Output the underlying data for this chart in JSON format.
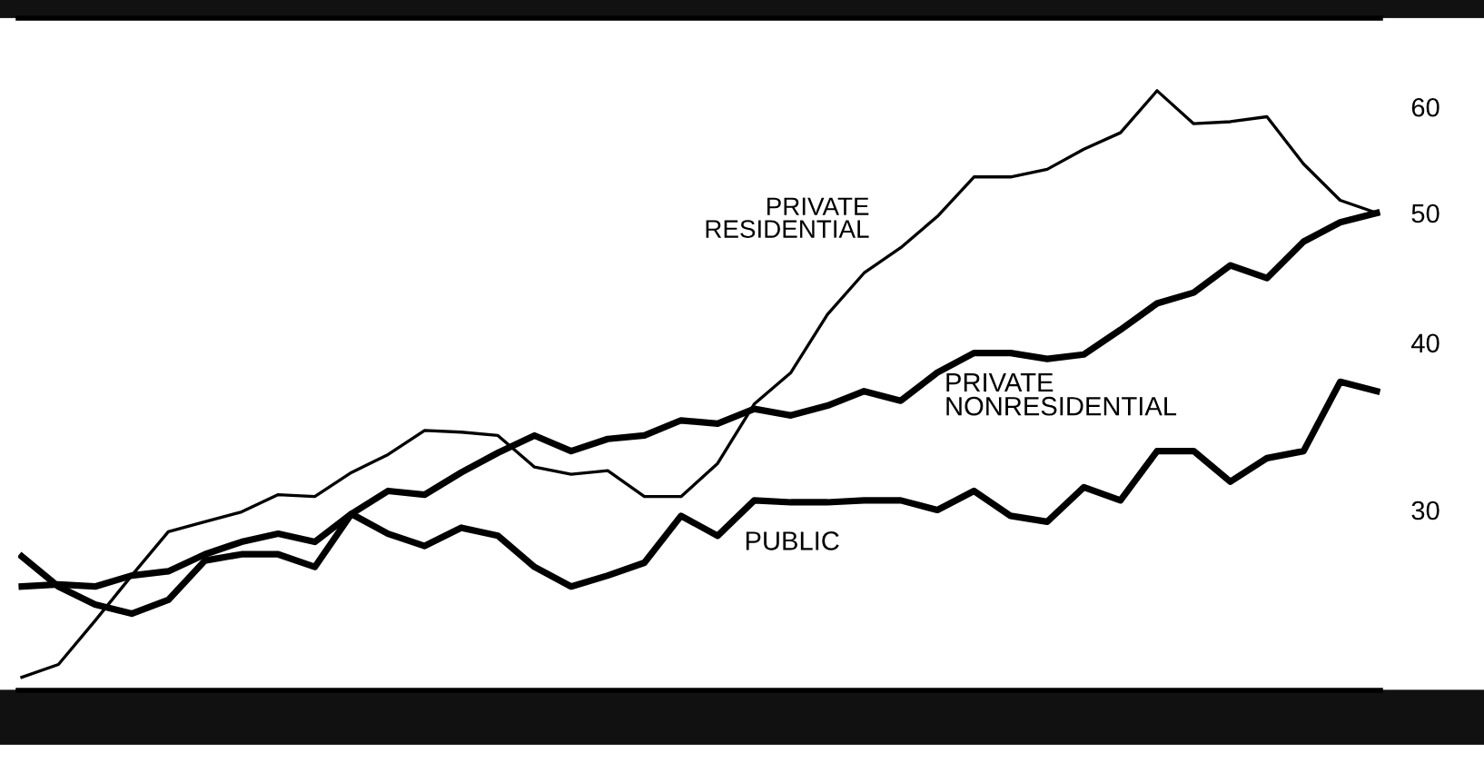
{
  "chart_data": {
    "type": "line",
    "log": true,
    "tick_labels": "y",
    "grid": false,
    "legend": false,
    "marker": "none",
    "line_style": "solid",
    "categories": [
      null,
      null,
      null,
      null,
      null,
      null,
      null,
      null,
      null,
      null,
      null,
      null,
      null,
      null,
      null,
      null,
      null,
      null,
      null,
      null,
      null,
      null,
      null,
      null,
      null,
      null,
      null,
      null,
      null,
      null,
      null,
      null,
      null,
      null,
      null,
      null,
      null,
      null
    ],
    "ylim": [
      22.0,
      69.9
    ],
    "yticks": [
      30,
      40,
      50,
      60
    ],
    "series": [
      {
        "name": "PRIVATE\nRESIDENTIAL",
        "color": "#000000",
        "values": [
          22.5,
          23.0,
          24.8,
          26.8,
          28.9,
          29.4,
          29.9,
          30.8,
          30.7,
          32.0,
          33.0,
          34.4,
          34.3,
          34.1,
          32.3,
          31.9,
          32.1,
          30.7,
          30.7,
          32.5,
          36.0,
          38.0,
          42.0,
          45.1,
          47.1,
          49.7,
          53.2,
          53.2,
          53.9,
          55.8,
          57.4,
          61.7,
          58.3,
          58.5,
          59.0,
          54.4,
          51.1,
          50.0
        ]
      },
      {
        "name": "PRIVATE\nNONRESIDENTIAL",
        "color": "#000000",
        "values": [
          26.3,
          26.4,
          26.3,
          26.8,
          27.0,
          27.8,
          28.4,
          28.8,
          28.4,
          29.8,
          31.0,
          30.8,
          32.0,
          33.1,
          34.1,
          33.2,
          33.9,
          34.1,
          35.0,
          34.8,
          35.7,
          35.3,
          35.9,
          36.8,
          36.2,
          38.0,
          39.3,
          39.3,
          38.9,
          39.2,
          40.9,
          42.8,
          43.6,
          45.7,
          44.7,
          47.6,
          49.2,
          50.0
        ]
      },
      {
        "name": "PUBLIC",
        "color": "#000000",
        "values": [
          27.7,
          26.3,
          25.5,
          25.1,
          25.7,
          27.5,
          27.8,
          27.8,
          27.2,
          29.8,
          28.8,
          28.2,
          29.1,
          28.7,
          27.2,
          26.3,
          26.8,
          27.4,
          29.7,
          28.7,
          30.5,
          30.4,
          30.4,
          30.5,
          30.5,
          30.0,
          31.0,
          29.7,
          29.4,
          31.2,
          30.5,
          33.2,
          33.2,
          31.5,
          32.8,
          33.2,
          37.4,
          36.8
        ]
      }
    ]
  }
}
